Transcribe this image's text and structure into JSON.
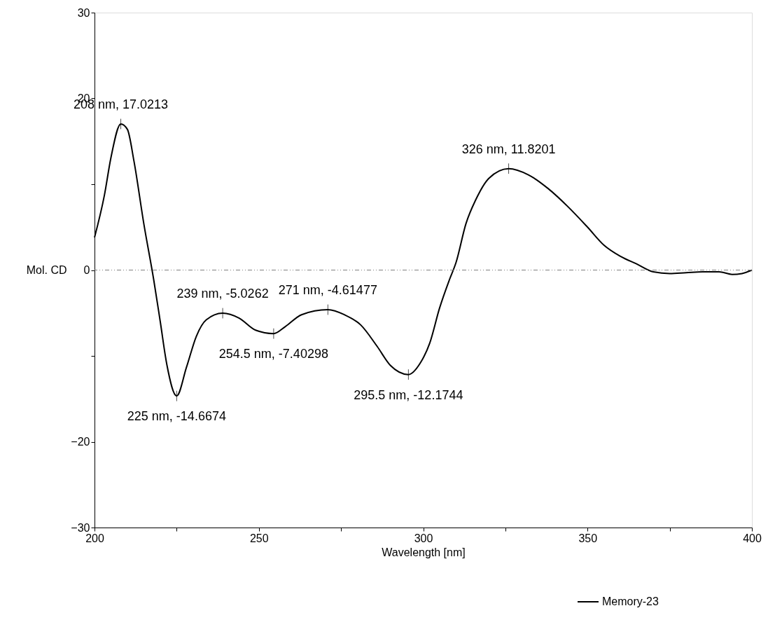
{
  "chart_data": {
    "type": "line",
    "xlabel": "Wavelength [nm]",
    "ylabel": "Mol. CD",
    "xlim": [
      200,
      400
    ],
    "xticks": [
      200,
      {
        "value": 225,
        "label": null
      },
      250,
      {
        "value": 275,
        "label": null
      },
      300,
      {
        "value": 325,
        "label": null
      },
      350,
      {
        "value": 375,
        "label": null
      },
      400
    ],
    "ylim": [
      -30,
      30
    ],
    "yticks": [
      -30,
      -20,
      {
        "value": -10,
        "label": null
      },
      0,
      {
        "value": 10,
        "label": null
      },
      20,
      30
    ],
    "grid": false,
    "legend": "bottom right",
    "line_style": "solid",
    "marker": "none",
    "x": [
      200,
      203,
      205,
      208,
      210,
      212,
      215,
      218,
      220,
      222,
      225,
      228,
      231,
      234,
      239,
      244,
      249,
      254.5,
      258,
      263,
      271,
      276,
      281,
      286,
      290,
      295.5,
      299,
      302,
      305,
      308,
      310,
      313,
      316,
      320,
      326,
      332,
      338,
      344,
      350,
      355,
      360,
      365,
      370,
      375,
      380,
      385,
      390,
      394,
      397,
      400
    ],
    "series": [
      {
        "name": "Memory-23",
        "color": "#000000",
        "values": [
          3.8,
          8.7,
          13.1,
          17.0213,
          16.4,
          12.7,
          5.4,
          -1.1,
          -6.0,
          -11.0,
          -14.6674,
          -11.3,
          -7.7,
          -5.8,
          -5.0262,
          -5.6,
          -7.0,
          -7.40298,
          -6.6,
          -5.2,
          -4.61477,
          -5.2,
          -6.4,
          -8.9,
          -11.1,
          -12.1744,
          -10.9,
          -8.5,
          -4.4,
          -1.1,
          0.9,
          5.4,
          8.2,
          10.7,
          11.8201,
          11.1,
          9.5,
          7.4,
          5.0,
          2.9,
          1.6,
          0.7,
          -0.2,
          -0.4,
          -0.3,
          -0.2,
          -0.2,
          -0.5,
          -0.4,
          0.0
        ]
      }
    ],
    "ref_lines": [
      {
        "axis": "y",
        "value": 0,
        "color": "#808080",
        "line_style": "dashed"
      }
    ],
    "annotations": [
      {
        "text": "208 nm, 17.0213",
        "x": 208,
        "y": 17.0213
      },
      {
        "text": "225 nm, -14.6674",
        "x": 225,
        "y": -14.6674
      },
      {
        "text": "239 nm, -5.0262",
        "x": 239,
        "y": -5.0262
      },
      {
        "text": "254.5 nm, -7.40298",
        "x": 254.5,
        "y": -7.40298
      },
      {
        "text": "271 nm, -4.61477",
        "x": 271,
        "y": -4.61477
      },
      {
        "text": "295.5 nm, -12.1744",
        "x": 295.5,
        "y": -12.1744
      },
      {
        "text": "326 nm, 11.8201",
        "x": 326,
        "y": 11.8201
      }
    ]
  }
}
